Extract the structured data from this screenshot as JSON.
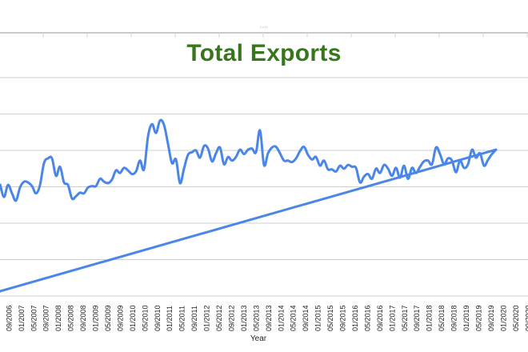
{
  "window": {
    "grip_icon": "drag-handle-dots-icon"
  },
  "chart_data": {
    "type": "line",
    "title": "Total Exports",
    "xlabel": "Year",
    "ylabel": "",
    "title_color": "#38761d",
    "line_color": "#4a86e8",
    "grid": true,
    "legend": "none",
    "x_tick_labels": [
      "09/2006",
      "01/2007",
      "05/2007",
      "09/2007",
      "01/2008",
      "05/2008",
      "09/2008",
      "01/2009",
      "05/2009",
      "09/2009",
      "01/2010",
      "05/2010",
      "09/2010",
      "01/2011",
      "05/2011",
      "09/2011",
      "01/2012",
      "05/2012",
      "09/2012",
      "01/2013",
      "05/2013",
      "09/2013",
      "01/2014",
      "05/2014",
      "09/2014",
      "01/2015",
      "05/2015",
      "09/2015",
      "01/2016",
      "05/2016",
      "09/2016",
      "01/2017",
      "05/2017",
      "09/2017",
      "01/2018",
      "05/2018",
      "09/2018",
      "01/2019",
      "05/2019",
      "09/2019",
      "01/2020",
      "05/2020",
      "09/2020"
    ],
    "ylim": [
      0,
      6
    ],
    "series": [
      {
        "values": [
          3.08,
          2.72,
          3.05,
          2.82,
          2.62,
          2.98,
          3.14,
          3.12,
          3.02,
          2.82,
          3.05,
          3.65,
          3.78,
          3.78,
          3.3,
          3.55,
          3.12,
          3.05,
          2.68,
          2.74,
          2.84,
          2.82,
          2.98,
          3.02,
          3.02,
          3.22,
          3.14,
          3.1,
          3.2,
          3.45,
          3.38,
          3.52,
          3.45,
          3.35,
          3.42,
          3.72,
          3.48,
          4.38,
          4.72,
          4.48,
          4.82,
          4.7,
          4.18,
          3.65,
          3.75,
          3.1,
          3.5,
          3.88,
          3.95,
          4.0,
          3.8,
          4.12,
          4.05,
          3.7,
          3.92,
          4.08,
          3.62,
          3.82,
          3.72,
          3.82,
          4.02,
          3.9,
          4.02,
          4.05,
          3.95,
          4.55,
          3.6,
          3.92,
          4.08,
          4.1,
          3.92,
          3.72,
          3.72,
          3.68,
          3.78,
          3.98,
          4.1,
          3.88,
          3.75,
          3.82,
          3.58,
          3.72,
          3.48,
          3.48,
          3.42,
          3.58,
          3.5,
          3.6,
          3.55,
          3.52,
          3.12,
          3.28,
          3.35,
          3.22,
          3.5,
          3.38,
          3.6,
          3.5,
          3.3,
          3.52,
          3.25,
          3.58,
          3.22,
          3.52,
          3.38,
          3.55,
          3.7,
          3.72,
          3.62,
          4.08,
          3.9,
          3.62,
          3.78,
          3.72,
          3.4,
          3.72,
          3.52,
          3.62,
          4.02,
          3.8,
          3.92,
          3.58,
          3.74,
          3.9,
          4.02
        ],
        "trendline": [
          0.0,
          4.02
        ]
      }
    ]
  }
}
